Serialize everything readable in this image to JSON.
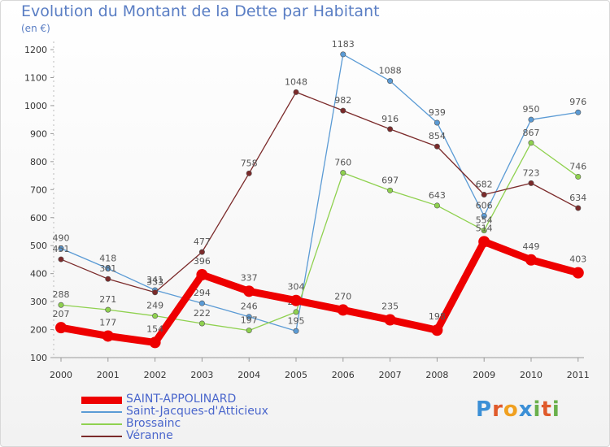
{
  "chart_data": {
    "type": "line",
    "title": "Evolution du Montant de la Dette par Habitant",
    "subtitle": "(en €)",
    "xlabel": "",
    "ylabel": "",
    "categories": [
      "2000",
      "2001",
      "2002",
      "2003",
      "2004",
      "2005",
      "2006",
      "2007",
      "2008",
      "2009",
      "2010",
      "2011"
    ],
    "ylim": [
      100,
      1200
    ],
    "yticks": [
      100,
      200,
      300,
      400,
      500,
      600,
      700,
      800,
      900,
      1000,
      1100,
      1200
    ],
    "grid": false,
    "legend_position": "bottom-left",
    "series": [
      {
        "name": "SAINT-APPOLINARD",
        "color": "#ee0000",
        "values": [
          207,
          177,
          154,
          396,
          337,
          304,
          270,
          235,
          198,
          514,
          449,
          403
        ]
      },
      {
        "name": "Saint-Jacques-d'Atticieux",
        "color": "#5b9bd5",
        "values": [
          490,
          418,
          341,
          294,
          246,
          195,
          1183,
          1088,
          939,
          606,
          950,
          976
        ]
      },
      {
        "name": "Brossainc",
        "color": "#8fd14f",
        "values": [
          288,
          271,
          249,
          222,
          197,
          263,
          760,
          697,
          643,
          554,
          867,
          746
        ]
      },
      {
        "name": "Véranne",
        "color": "#7b2a2a",
        "values": [
          451,
          381,
          333,
          477,
          758,
          1048,
          982,
          916,
          854,
          682,
          723,
          634
        ]
      }
    ]
  },
  "logo": {
    "letters": [
      "P",
      "r",
      "o",
      "x",
      "i",
      "t",
      "i"
    ],
    "colors": [
      "#3b8fd6",
      "#e05a2b",
      "#f0a020",
      "#3b8fd6",
      "#6ab04c",
      "#e05a2b",
      "#6ab04c"
    ]
  }
}
